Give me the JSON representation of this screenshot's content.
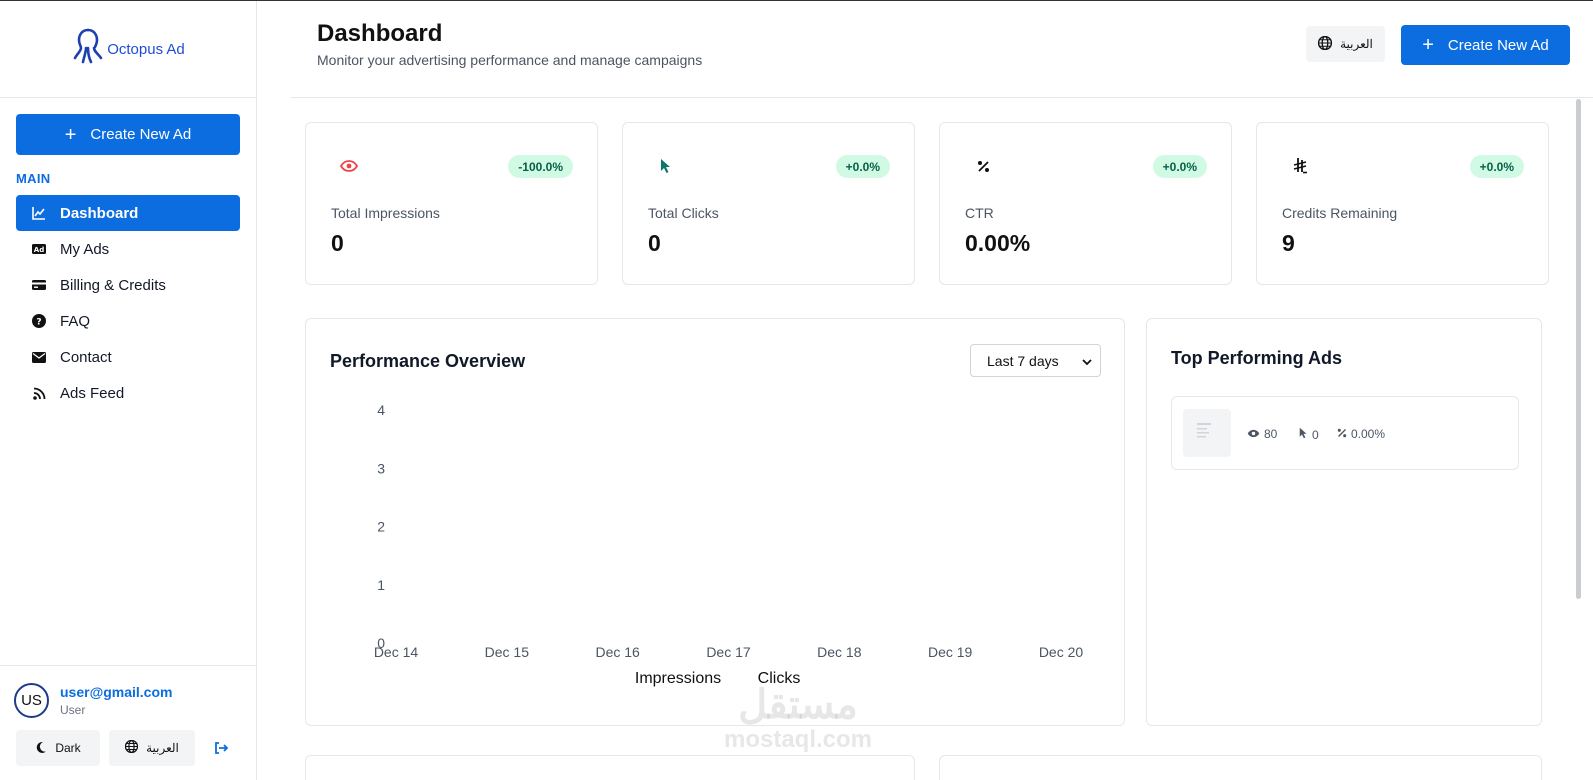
{
  "brand": {
    "name": "Octopus Ad",
    "logo_icon": "octopus-icon"
  },
  "sidebar": {
    "create_label": "Create New Ad",
    "section_label": "MAIN",
    "items": [
      {
        "label": "Dashboard",
        "icon": "chart-line-icon",
        "active": true
      },
      {
        "label": "My Ads",
        "icon": "ad-icon"
      },
      {
        "label": "Billing & Credits",
        "icon": "credit-card-icon"
      },
      {
        "label": "FAQ",
        "icon": "question-circle-icon"
      },
      {
        "label": "Contact",
        "icon": "envelope-icon"
      },
      {
        "label": "Ads Feed",
        "icon": "rss-icon"
      }
    ],
    "user": {
      "initials": "US",
      "email": "user@gmail.com",
      "role": "User"
    },
    "theme_label": "Dark",
    "lang_label": "العربية"
  },
  "header": {
    "title": "Dashboard",
    "subtitle": "Monitor your advertising performance and manage campaigns",
    "lang_label": "العربية",
    "create_label": "Create New Ad"
  },
  "stats": [
    {
      "label": "Total Impressions",
      "value": "0",
      "badge": "-100.0%",
      "icon": "eye-icon",
      "icon_color": "#ef4444"
    },
    {
      "label": "Total Clicks",
      "value": "0",
      "badge": "+0.0%",
      "icon": "cursor-icon",
      "icon_color": "#0f766e"
    },
    {
      "label": "CTR",
      "value": "0.00%",
      "badge": "+0.0%",
      "icon": "percent-icon",
      "icon_color": "#111111"
    },
    {
      "label": "Credits Remaining",
      "value": "9",
      "badge": "+0.0%",
      "icon": "currency-icon",
      "icon_color": "#111111"
    }
  ],
  "performance": {
    "title": "Performance Overview",
    "range_selected": "Last 7 days"
  },
  "chart_data": {
    "type": "line",
    "categories": [
      "Dec 14",
      "Dec 15",
      "Dec 16",
      "Dec 17",
      "Dec 18",
      "Dec 19",
      "Dec 20"
    ],
    "y_ticks": [
      "0",
      "1",
      "2",
      "3",
      "4"
    ],
    "ylim": [
      0,
      4
    ],
    "series": [
      {
        "name": "Impressions",
        "values": [
          0,
          0,
          0,
          0,
          0,
          0,
          0
        ]
      },
      {
        "name": "Clicks",
        "values": [
          0,
          0,
          0,
          0,
          0,
          0,
          0
        ]
      }
    ],
    "legend": "bottom",
    "grid": false
  },
  "top_ads": {
    "title": "Top Performing Ads",
    "items": [
      {
        "views": "80",
        "clicks": "0",
        "ctr": "0.00%"
      }
    ]
  },
  "watermark": {
    "arabic": "مستقل",
    "latin": "mostaql.com"
  }
}
